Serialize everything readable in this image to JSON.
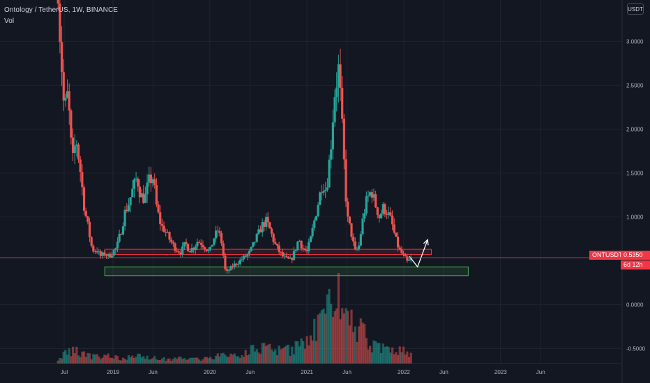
{
  "header": {
    "title": "Ontology / TetherUS, 1W, BINANCE",
    "indicator": "Vol",
    "currency": "USDT"
  },
  "price_tag": {
    "symbol": "ONTUSDT",
    "price": "0.5350",
    "countdown": "6d 12h"
  },
  "colors": {
    "up": "#26a69a",
    "down": "#ef5350",
    "resistance": "#f23645",
    "support": "#4caf50",
    "projection": "#ffffff"
  },
  "chart_data": {
    "type": "candlestick",
    "grid": true,
    "yaxis": {
      "ticks": [
        3.0,
        2.5,
        2.0,
        1.5,
        1.0,
        0.0,
        -0.5
      ],
      "tick_labels": [
        "3.0000",
        "2.5000",
        "2.0000",
        "1.5000",
        "1.0000",
        "0.0000",
        "-0.5000"
      ]
    },
    "xaxis": {
      "ticks": [
        "2018-07-01",
        "2019-01-01",
        "2019-06-01",
        "2020-01-01",
        "2020-06-01",
        "2021-01-01",
        "2021-06-01",
        "2022-01-01",
        "2022-06-01",
        "2023-01-01",
        "2023-06-01"
      ],
      "tick_labels": [
        "Jul",
        "2019",
        "Jun",
        "2020",
        "Jun",
        "2021",
        "Jun",
        "2022",
        "Jun",
        "2023",
        "Jun"
      ]
    },
    "close_series": {
      "dates": [
        "2018-06-01",
        "2018-06-15",
        "2018-07-01",
        "2018-07-15",
        "2018-08-01",
        "2018-08-15",
        "2018-09-01",
        "2018-09-15",
        "2018-10-01",
        "2018-10-15",
        "2018-11-01",
        "2018-11-15",
        "2018-12-01",
        "2018-12-15",
        "2019-01-01",
        "2019-01-15",
        "2019-02-01",
        "2019-02-15",
        "2019-03-01",
        "2019-03-15",
        "2019-04-01",
        "2019-04-15",
        "2019-05-01",
        "2019-05-15",
        "2019-06-01",
        "2019-06-15",
        "2019-07-01",
        "2019-07-15",
        "2019-08-01",
        "2019-08-15",
        "2019-09-01",
        "2019-09-15",
        "2019-10-01",
        "2019-10-15",
        "2019-11-01",
        "2019-11-15",
        "2019-12-01",
        "2019-12-15",
        "2020-01-01",
        "2020-01-15",
        "2020-02-01",
        "2020-02-15",
        "2020-03-01",
        "2020-03-15",
        "2020-04-01",
        "2020-04-15",
        "2020-05-01",
        "2020-05-15",
        "2020-06-01",
        "2020-06-15",
        "2020-07-01",
        "2020-07-15",
        "2020-08-01",
        "2020-08-15",
        "2020-09-01",
        "2020-09-15",
        "2020-10-01",
        "2020-10-15",
        "2020-11-01",
        "2020-11-15",
        "2020-12-01",
        "2020-12-15",
        "2021-01-01",
        "2021-01-15",
        "2021-02-01",
        "2021-02-15",
        "2021-03-01",
        "2021-03-15",
        "2021-04-01",
        "2021-04-15",
        "2021-05-01",
        "2021-05-15",
        "2021-06-01",
        "2021-06-15",
        "2021-07-01",
        "2021-07-15",
        "2021-08-01",
        "2021-08-15",
        "2021-09-01",
        "2021-09-15",
        "2021-10-01",
        "2021-10-15",
        "2021-11-01",
        "2021-11-15",
        "2021-12-01",
        "2021-12-15",
        "2022-01-01",
        "2022-01-15",
        "2022-02-01"
      ],
      "values": [
        4.2,
        3.1,
        2.2,
        2.4,
        1.6,
        1.9,
        1.5,
        1.1,
        0.85,
        0.62,
        0.62,
        0.55,
        0.58,
        0.55,
        0.6,
        0.65,
        0.85,
        1.05,
        1.15,
        1.3,
        1.45,
        1.25,
        1.2,
        1.4,
        1.45,
        1.1,
        0.9,
        0.85,
        0.75,
        0.68,
        0.62,
        0.6,
        0.7,
        0.62,
        0.65,
        0.72,
        0.7,
        0.65,
        0.6,
        0.75,
        0.85,
        0.7,
        0.35,
        0.4,
        0.45,
        0.48,
        0.52,
        0.55,
        0.6,
        0.7,
        0.8,
        0.9,
        0.95,
        0.85,
        0.7,
        0.62,
        0.55,
        0.52,
        0.5,
        0.6,
        0.75,
        0.65,
        0.6,
        0.75,
        1.0,
        1.2,
        1.4,
        1.3,
        1.8,
        2.4,
        2.7,
        1.95,
        1.0,
        0.85,
        0.6,
        0.65,
        1.0,
        1.2,
        1.3,
        1.15,
        1.0,
        1.1,
        1.05,
        0.95,
        0.75,
        0.62,
        0.55,
        0.48,
        0.535
      ]
    },
    "volume": {
      "dates": [
        "2018-06-01",
        "2018-08-01",
        "2018-10-01",
        "2018-12-01",
        "2019-02-01",
        "2019-04-01",
        "2019-06-01",
        "2019-08-01",
        "2019-10-01",
        "2019-12-01",
        "2020-02-01",
        "2020-04-01",
        "2020-06-01",
        "2020-08-01",
        "2020-10-01",
        "2020-12-01",
        "2021-01-15",
        "2021-03-01",
        "2021-04-01",
        "2021-05-01",
        "2021-06-01",
        "2021-07-01",
        "2021-08-01",
        "2021-09-01",
        "2021-10-01",
        "2021-11-01",
        "2021-12-01",
        "2022-01-01",
        "2022-02-01"
      ],
      "values": [
        3,
        10,
        5,
        6,
        4,
        5,
        4,
        3,
        4,
        3,
        6,
        5,
        9,
        12,
        8,
        12,
        22,
        35,
        45,
        55,
        38,
        28,
        22,
        14,
        12,
        10,
        9,
        12,
        5
      ]
    },
    "annotations": [
      {
        "kind": "resistance_zone",
        "from": "2018-12-01",
        "to": "2022-04-15",
        "low": 0.57,
        "high": 0.63
      },
      {
        "kind": "support_zone",
        "from": "2018-12-01",
        "to": "2022-09-01",
        "low": 0.33,
        "high": 0.43
      },
      {
        "kind": "projection",
        "points": [
          [
            "2022-01-22",
            0.55
          ],
          [
            "2022-02-22",
            0.43
          ],
          [
            "2022-04-01",
            0.74
          ]
        ]
      },
      {
        "kind": "price_line",
        "value": 0.535
      }
    ]
  }
}
